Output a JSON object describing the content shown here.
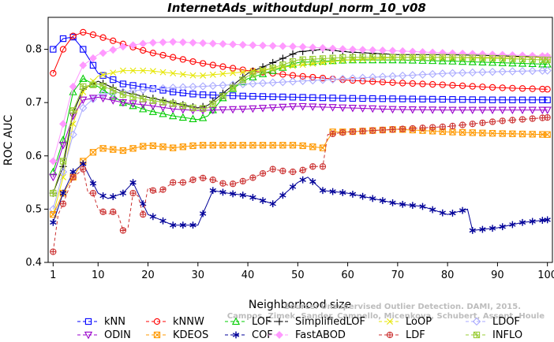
{
  "chart_data": {
    "type": "line",
    "title": "InternetAds_withoutdupl_norm_10_v08",
    "xlabel": "Neighborhood size",
    "ylabel": "ROC AUC",
    "xlim": [
      0,
      101
    ],
    "ylim": [
      0.4,
      0.86
    ],
    "x_ticks": [
      1,
      10,
      20,
      30,
      40,
      50,
      60,
      70,
      80,
      90,
      100
    ],
    "y_ticks": [
      0.4,
      0.5,
      0.6,
      0.7,
      0.8
    ],
    "grid": false,
    "legend_position": "bottom",
    "watermark": [
      "Source: Unsupervised Outlier Detection. DAMI, 2015.",
      "Campos, Zimek, Sander, Campello, Micenkova, Schubert, Assent, Houle"
    ],
    "series": [
      {
        "name": "kNN",
        "color": "#0000ff",
        "marker": "square",
        "dashed": false,
        "x": [
          1,
          3,
          5,
          7,
          10,
          15,
          20,
          25,
          30,
          40,
          50,
          60,
          70,
          80,
          90,
          100
        ],
        "y": [
          0.8,
          0.82,
          0.823,
          0.8,
          0.755,
          0.735,
          0.728,
          0.72,
          0.715,
          0.712,
          0.71,
          0.708,
          0.707,
          0.706,
          0.705,
          0.705
        ]
      },
      {
        "name": "kNNW",
        "color": "#ff0000",
        "marker": "circle",
        "dashed": false,
        "x": [
          1,
          3,
          5,
          7,
          10,
          15,
          20,
          25,
          30,
          40,
          50,
          60,
          70,
          80,
          90,
          100
        ],
        "y": [
          0.755,
          0.8,
          0.825,
          0.832,
          0.825,
          0.81,
          0.795,
          0.785,
          0.775,
          0.76,
          0.75,
          0.742,
          0.737,
          0.733,
          0.728,
          0.725
        ]
      },
      {
        "name": "LOF",
        "color": "#00cc00",
        "marker": "triangle-up",
        "dashed": false,
        "x": [
          1,
          3,
          5,
          7,
          10,
          15,
          20,
          25,
          30,
          32,
          36,
          40,
          45,
          50,
          60,
          70,
          80,
          90,
          100
        ],
        "y": [
          0.57,
          0.63,
          0.72,
          0.745,
          0.73,
          0.7,
          0.685,
          0.675,
          0.668,
          0.675,
          0.72,
          0.745,
          0.76,
          0.775,
          0.78,
          0.78,
          0.778,
          0.775,
          0.772
        ]
      },
      {
        "name": "SimplifiedLOF",
        "color": "#000000",
        "marker": "plus",
        "dashed": false,
        "x": [
          1,
          3,
          5,
          7,
          10,
          15,
          20,
          25,
          30,
          32,
          36,
          40,
          45,
          50,
          55,
          60,
          70,
          80,
          90,
          100
        ],
        "y": [
          0.53,
          0.58,
          0.68,
          0.725,
          0.74,
          0.72,
          0.71,
          0.7,
          0.69,
          0.695,
          0.725,
          0.755,
          0.775,
          0.795,
          0.8,
          0.795,
          0.79,
          0.79,
          0.788,
          0.785
        ]
      },
      {
        "name": "LoOP",
        "color": "#e6e600",
        "marker": "x",
        "dashed": false,
        "x": [
          1,
          3,
          5,
          7,
          10,
          15,
          20,
          25,
          30,
          40,
          50,
          60,
          70,
          80,
          90,
          100
        ],
        "y": [
          0.49,
          0.56,
          0.66,
          0.72,
          0.75,
          0.76,
          0.76,
          0.755,
          0.75,
          0.758,
          0.77,
          0.78,
          0.785,
          0.785,
          0.785,
          0.785
        ]
      },
      {
        "name": "LDOF",
        "color": "#aaaaff",
        "marker": "diamond",
        "dashed": false,
        "x": [
          1,
          3,
          5,
          7,
          10,
          15,
          20,
          25,
          30,
          40,
          50,
          60,
          70,
          80,
          90,
          100
        ],
        "y": [
          0.5,
          0.57,
          0.64,
          0.69,
          0.715,
          0.72,
          0.725,
          0.728,
          0.73,
          0.735,
          0.74,
          0.745,
          0.75,
          0.755,
          0.758,
          0.76
        ]
      },
      {
        "name": "ODIN",
        "color": "#9900cc",
        "marker": "triangle-down",
        "dashed": false,
        "x": [
          1,
          3,
          5,
          7,
          10,
          15,
          20,
          25,
          30,
          40,
          50,
          60,
          70,
          80,
          90,
          100
        ],
        "y": [
          0.56,
          0.62,
          0.675,
          0.705,
          0.71,
          0.7,
          0.695,
          0.688,
          0.685,
          0.688,
          0.693,
          0.69,
          0.687,
          0.686,
          0.686,
          0.686
        ]
      },
      {
        "name": "KDEOS",
        "color": "#ff9900",
        "marker": "square-x",
        "dashed": false,
        "x": [
          1,
          3,
          5,
          7,
          10,
          15,
          20,
          25,
          30,
          40,
          50,
          55,
          57,
          60,
          70,
          80,
          90,
          100
        ],
        "y": [
          0.49,
          0.53,
          0.56,
          0.59,
          0.615,
          0.61,
          0.62,
          0.615,
          0.62,
          0.62,
          0.62,
          0.615,
          0.645,
          0.645,
          0.65,
          0.645,
          0.642,
          0.64
        ]
      },
      {
        "name": "COF",
        "color": "#000099",
        "marker": "asterisk",
        "dashed": false,
        "x": [
          1,
          3,
          5,
          7,
          10,
          12,
          15,
          17,
          20,
          25,
          30,
          33,
          36,
          40,
          45,
          50,
          52,
          55,
          60,
          65,
          70,
          75,
          80,
          84,
          85,
          90,
          95,
          100
        ],
        "y": [
          0.475,
          0.53,
          0.57,
          0.585,
          0.53,
          0.52,
          0.53,
          0.55,
          0.49,
          0.47,
          0.47,
          0.535,
          0.53,
          0.525,
          0.51,
          0.55,
          0.56,
          0.535,
          0.53,
          0.52,
          0.51,
          0.505,
          0.49,
          0.5,
          0.46,
          0.465,
          0.475,
          0.48
        ]
      },
      {
        "name": "FastABOD",
        "color": "#ff99ff",
        "marker": "diamond-filled",
        "dashed": false,
        "x": [
          1,
          3,
          5,
          7,
          10,
          15,
          20,
          25,
          30,
          40,
          50,
          60,
          70,
          80,
          90,
          100
        ],
        "y": [
          0.59,
          0.66,
          0.73,
          0.77,
          0.79,
          0.805,
          0.812,
          0.814,
          0.812,
          0.808,
          0.805,
          0.8,
          0.797,
          0.793,
          0.79,
          0.787
        ]
      },
      {
        "name": "LDF",
        "color": "#cc3333",
        "marker": "circle-plus",
        "dashed": true,
        "x": [
          1,
          2,
          3,
          5,
          7,
          8,
          9,
          10,
          11,
          12,
          13,
          14,
          15,
          16,
          17,
          18,
          19,
          20,
          22,
          25,
          28,
          30,
          33,
          36,
          40,
          45,
          48,
          50,
          53,
          55,
          56,
          60,
          70,
          80,
          90,
          100
        ],
        "y": [
          0.42,
          0.49,
          0.51,
          0.56,
          0.575,
          0.53,
          0.53,
          0.5,
          0.495,
          0.49,
          0.495,
          0.49,
          0.46,
          0.465,
          0.53,
          0.525,
          0.49,
          0.54,
          0.53,
          0.55,
          0.55,
          0.56,
          0.555,
          0.545,
          0.555,
          0.575,
          0.57,
          0.57,
          0.58,
          0.58,
          0.64,
          0.645,
          0.65,
          0.655,
          0.665,
          0.672
        ]
      },
      {
        "name": "INFLO",
        "color": "#99cc33",
        "marker": "square-star",
        "dashed": false,
        "x": [
          1,
          3,
          5,
          7,
          10,
          15,
          20,
          25,
          30,
          32,
          36,
          40,
          45,
          50,
          60,
          70,
          80,
          90,
          100
        ],
        "y": [
          0.53,
          0.59,
          0.685,
          0.73,
          0.735,
          0.715,
          0.705,
          0.698,
          0.688,
          0.69,
          0.72,
          0.75,
          0.765,
          0.78,
          0.785,
          0.785,
          0.785,
          0.783,
          0.78
        ]
      }
    ]
  }
}
